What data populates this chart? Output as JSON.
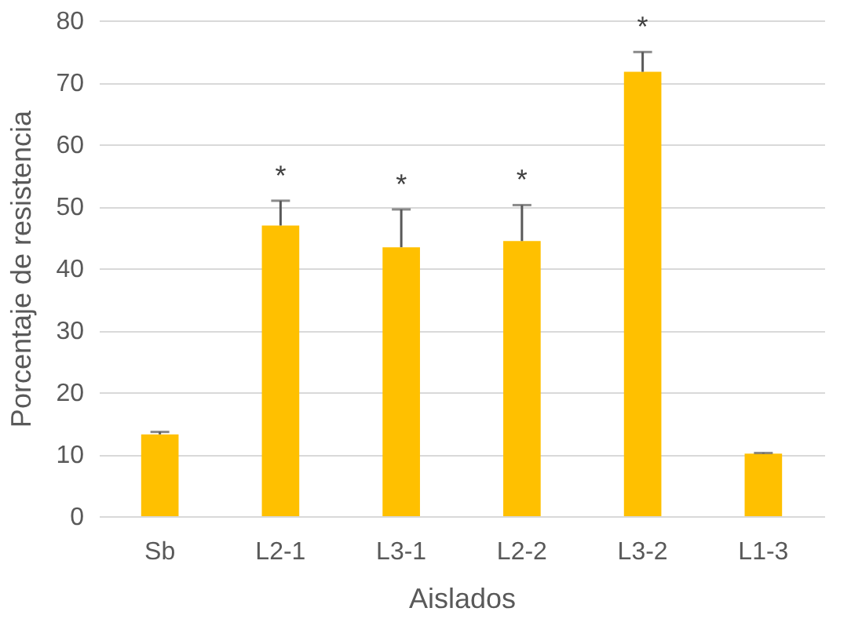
{
  "chart_data": {
    "type": "bar",
    "xlabel": "Aislados",
    "ylabel": "Porcentaje de resistencia",
    "categories": [
      "Sb",
      "L2-1",
      "L3-1",
      "L2-2",
      "L3-2",
      "L1-3"
    ],
    "series": [
      {
        "color": "#ffc000",
        "values": [
          13.2,
          46.9,
          43.4,
          44.4,
          71.7,
          10.1
        ],
        "errors": [
          [
            13.2,
            13.6
          ],
          [
            46.9,
            50.9
          ],
          [
            43.4,
            49.5
          ],
          [
            44.4,
            50.2
          ],
          [
            71.7,
            74.9
          ],
          [
            10.1,
            10.2
          ]
        ]
      }
    ],
    "ylim": [
      0,
      80
    ],
    "yticks": [
      0,
      10,
      20,
      30,
      40,
      50,
      60,
      70,
      80
    ],
    "grid": "y",
    "annotations": [
      {
        "text": "*",
        "x": "L2-1",
        "y": 50.9
      },
      {
        "text": "*",
        "x": "L3-1",
        "y": 49.5
      },
      {
        "text": "*",
        "x": "L2-2",
        "y": 50.2
      },
      {
        "text": "*",
        "x": "L3-2",
        "y": 74.9
      }
    ]
  }
}
